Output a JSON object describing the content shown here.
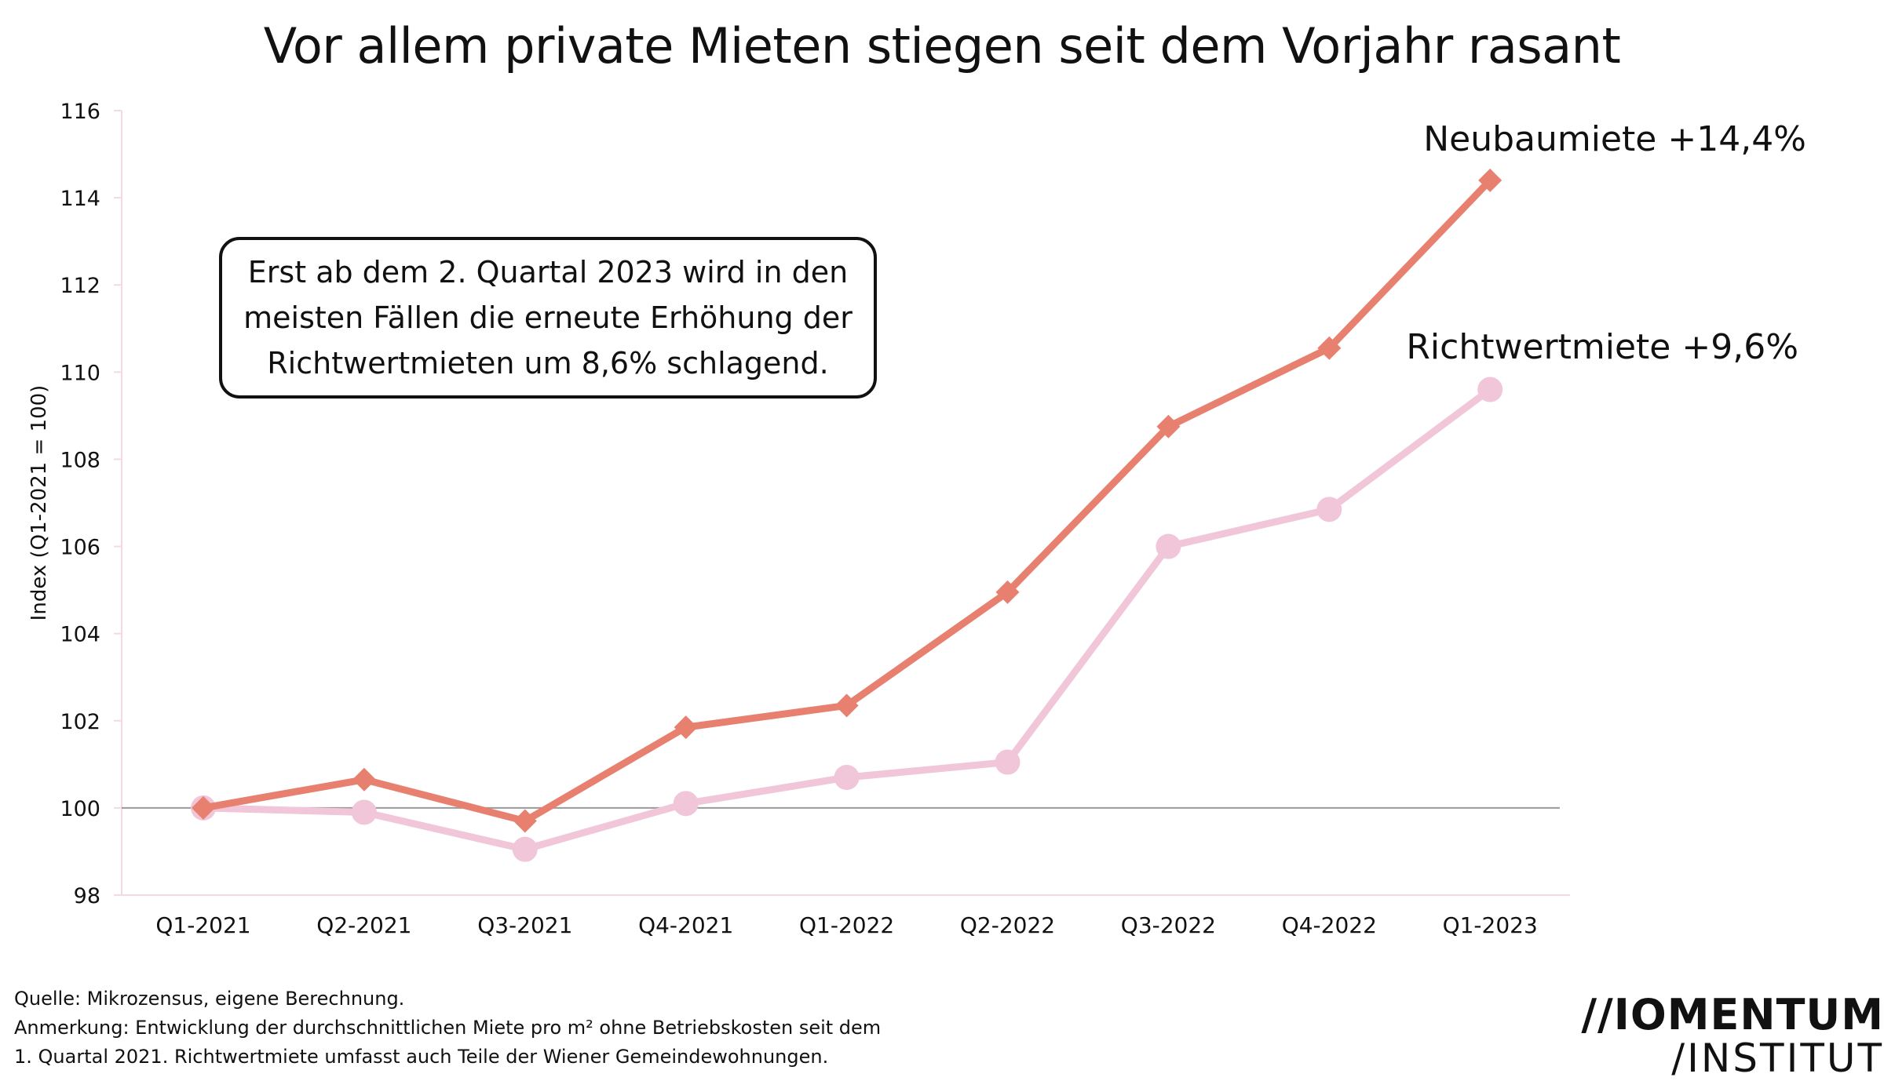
{
  "title": "Vor allem private Mieten stiegen seit dem Vorjahr rasant",
  "annotation": "Erst ab dem 2. Quartal 2023 wird in den meisten Fällen die erneute Erhöhung der Richtwertmieten um 8,6% schlagend.",
  "footer": {
    "source": "Quelle: Mikrozensus, eigene Berechnung.",
    "note_line1": "Anmerkung: Entwicklung der durchschnittlichen Miete pro m² ohne Betriebskosten seit dem",
    "note_line2": "1. Quartal 2021. Richtwertmiete umfasst auch Teile der Wiener Gemeindewohnungen."
  },
  "logo": {
    "top": "//IOMENTUM",
    "bottom": "/INSTITUT"
  },
  "chart_data": {
    "type": "line",
    "title": "Vor allem private Mieten stiegen seit dem Vorjahr rasant",
    "xlabel": "",
    "ylabel": "Index (Q1-2021 = 100)",
    "ylim": [
      98,
      116
    ],
    "yticks": [
      98,
      100,
      102,
      104,
      106,
      108,
      110,
      112,
      114,
      116
    ],
    "reference_line": 100,
    "grid": false,
    "categories": [
      "Q1-2021",
      "Q2-2021",
      "Q3-2021",
      "Q4-2021",
      "Q1-2022",
      "Q2-2022",
      "Q3-2022",
      "Q4-2022",
      "Q1-2023"
    ],
    "series": [
      {
        "name": "Neubaumiete",
        "label": "Neubaumiete +14,4%",
        "marker": "diamond",
        "color": "#e8806f",
        "values": [
          100.0,
          100.65,
          99.7,
          101.85,
          102.35,
          104.95,
          108.75,
          110.55,
          114.4
        ]
      },
      {
        "name": "Richtwertmiete",
        "label": "Richtwertmiete +9,6%",
        "marker": "circle",
        "color": "#f0c6d8",
        "values": [
          100.0,
          99.9,
          99.05,
          100.1,
          100.7,
          101.05,
          106.0,
          106.85,
          109.6
        ]
      }
    ]
  }
}
